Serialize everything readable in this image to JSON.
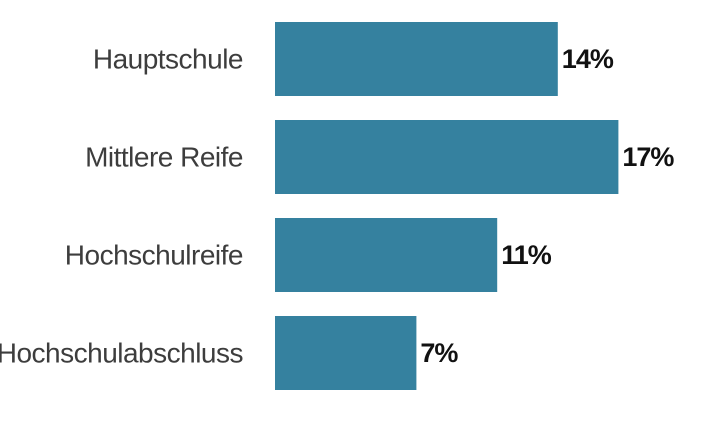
{
  "colors": {
    "bar": "#35819f",
    "category_text": "#3d3d3d",
    "value_text": "#111111",
    "background": "#ffffff"
  },
  "chart_data": {
    "type": "bar",
    "orientation": "horizontal",
    "title": "",
    "xlabel": "",
    "ylabel": "",
    "categories": [
      "Hauptschule",
      "Mittlere Reife",
      "Hochschulreife",
      "Hochschulabschluss"
    ],
    "values": [
      14,
      17,
      11,
      7
    ],
    "value_labels": [
      "14%",
      "17%",
      "11%",
      "7%"
    ],
    "unit": "%",
    "xlim": [
      0,
      17
    ],
    "grid": false,
    "legend": "none"
  }
}
